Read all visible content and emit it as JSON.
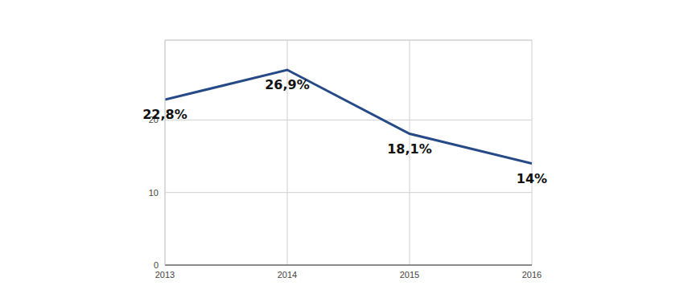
{
  "chart_data": {
    "type": "line",
    "x": [
      2013,
      2014,
      2015,
      2016
    ],
    "values": [
      22.8,
      26.9,
      18.1,
      14
    ],
    "value_labels": [
      "22,8%",
      "26,9%",
      "18,1%",
      "14%"
    ],
    "data_labels": true,
    "color": "#264a86",
    "xlim": [
      2013,
      2016
    ],
    "xticks": [
      2013,
      2014,
      2015,
      2016
    ],
    "ylim": [
      0,
      31
    ],
    "yticks": [
      0,
      10,
      20
    ],
    "grid": true
  }
}
